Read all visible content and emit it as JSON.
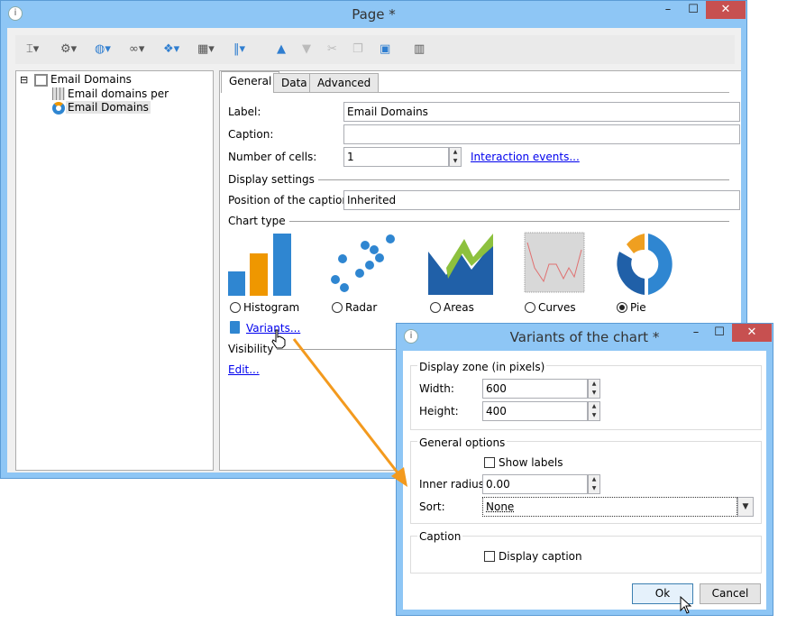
{
  "main_window": {
    "title": "Page *",
    "controls": {
      "minimize": "–",
      "maximize": "☐",
      "close": "✕"
    },
    "toolbar": [
      "text-cursor-icon",
      "pointer-settings-icon",
      "globe-icon",
      "link-icon",
      "layers-icon",
      "table-icon",
      "columns-icon",
      "arrow-up-icon",
      "arrow-down-icon",
      "cut-icon",
      "copy-icon",
      "paste-icon",
      "delete-icon"
    ],
    "tree": [
      {
        "label": "Email Domains",
        "icon": "page-layout-icon",
        "expander": "⊟"
      },
      {
        "label": "Email domains per recipient",
        "icon": "table-grid-icon"
      },
      {
        "label": "Email Domains",
        "icon": "donut-chart-icon",
        "selected": true
      }
    ],
    "tabs": [
      "General",
      "Data",
      "Advanced"
    ],
    "form": {
      "label_label": "Label:",
      "label_value": "Email Domains",
      "caption_label": "Caption:",
      "caption_value": "",
      "cells_label": "Number of cells:",
      "cells_value": "1",
      "interaction_link": "Interaction events...",
      "display_settings": "Display settings",
      "caption_pos_label": "Position of the caption:",
      "caption_pos_value": "Inherited",
      "chart_type": "Chart type",
      "chart_types": [
        {
          "label": "Histogram",
          "selected": false
        },
        {
          "label": "Radar",
          "selected": false
        },
        {
          "label": "Areas",
          "selected": false
        },
        {
          "label": "Curves",
          "selected": false
        },
        {
          "label": "Pie",
          "selected": true
        }
      ],
      "variants_link": "Variants...",
      "visibility": "Visibility",
      "edit_link": "Edit..."
    }
  },
  "dialog": {
    "title": "Variants of the chart *",
    "display_zone": "Display zone (in pixels)",
    "width_label": "Width:",
    "width_value": "600",
    "height_label": "Height:",
    "height_value": "400",
    "general_options": "General options",
    "show_labels": "Show labels",
    "inner_radius_label": "Inner radius:",
    "inner_radius_value": "0.00",
    "sort_label": "Sort:",
    "sort_value": "None",
    "caption_group": "Caption",
    "display_caption": "Display caption",
    "ok": "Ok",
    "cancel": "Cancel"
  },
  "colors": {
    "accent": "#ef9700",
    "chart_blue": "#2f86d1",
    "titlebar": "#8ec6f5",
    "link": "#0000ee"
  }
}
